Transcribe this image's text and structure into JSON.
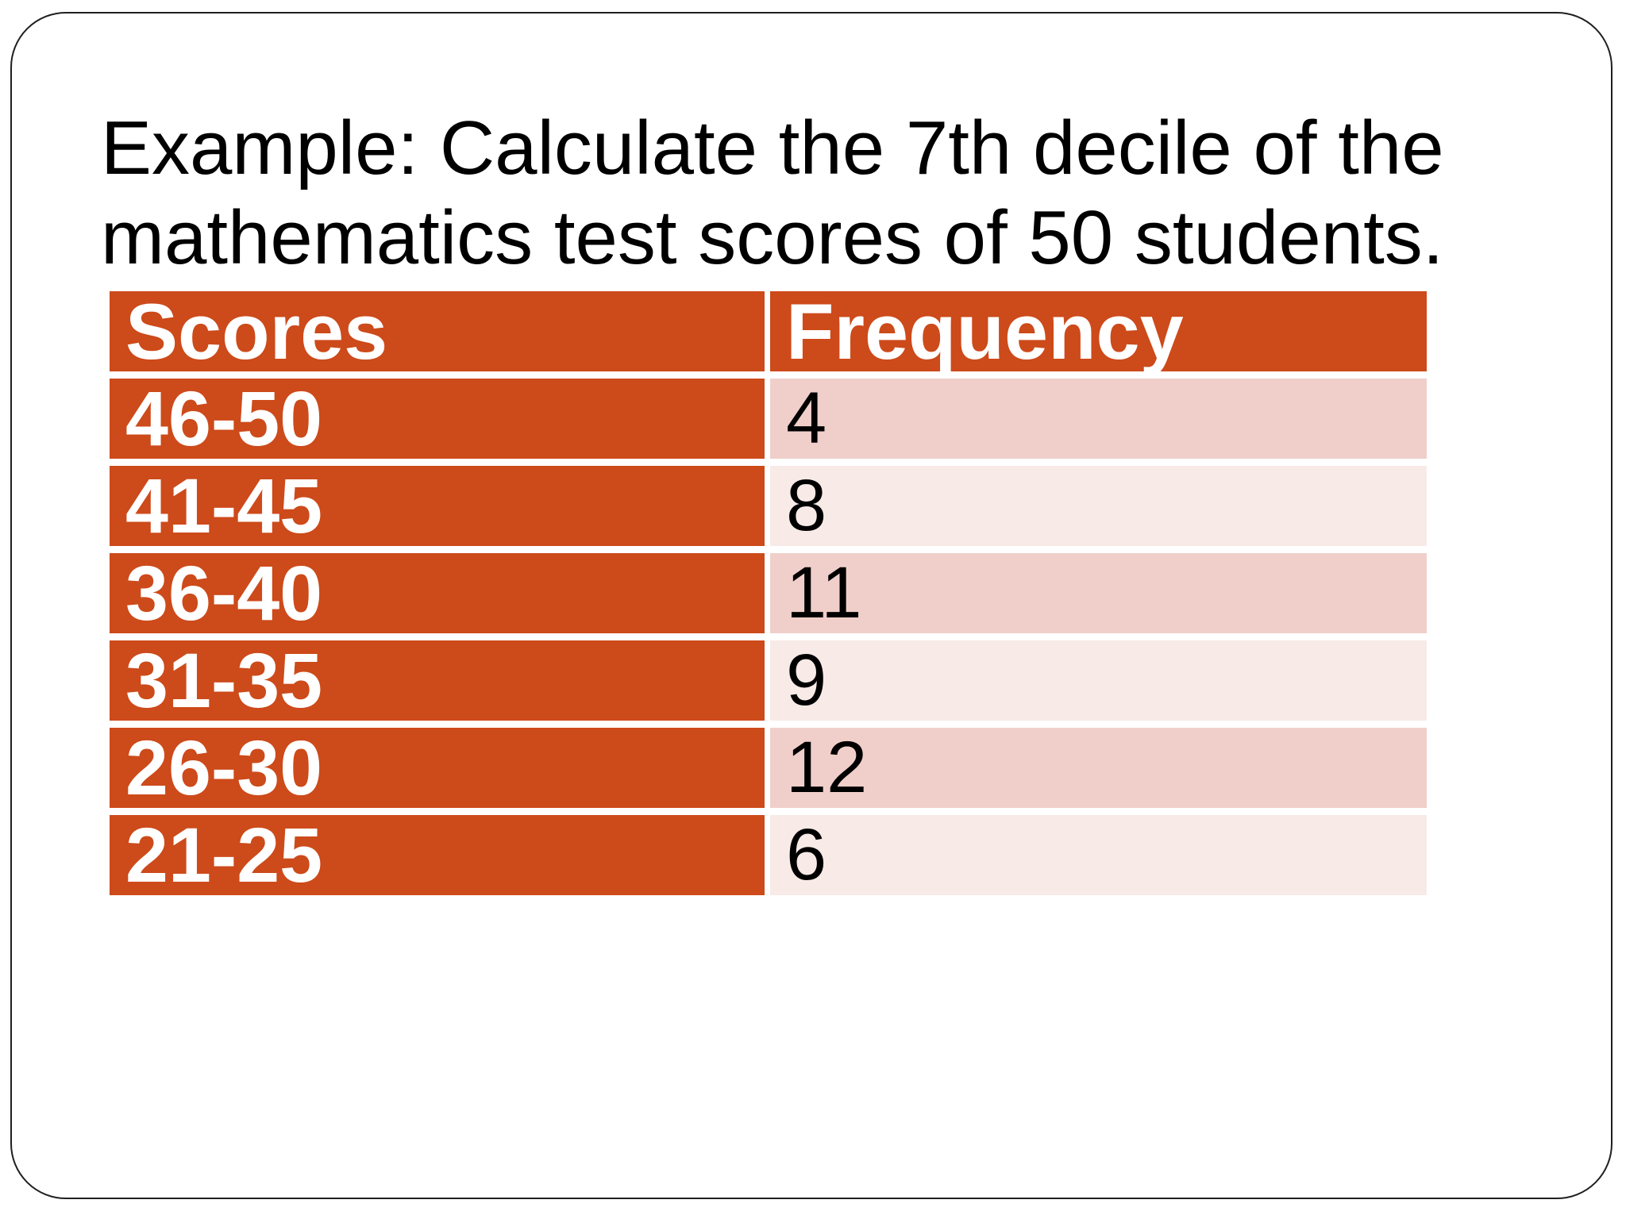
{
  "slide": {
    "title_lines": [
      "Example: Calculate the 7th decile of the",
      "mathematics test scores of 50 students."
    ]
  },
  "table": {
    "headers": [
      "Scores",
      "Frequency"
    ],
    "rows": [
      {
        "scores": "46-50",
        "frequency": "4"
      },
      {
        "scores": "41-45",
        "frequency": "8"
      },
      {
        "scores": "36-40",
        "frequency": "11"
      },
      {
        "scores": "31-35",
        "frequency": "9"
      },
      {
        "scores": "26-30",
        "frequency": "12"
      },
      {
        "scores": "21-25",
        "frequency": "6"
      }
    ]
  },
  "colors": {
    "accent_orange": "#CD4A1A",
    "row_band_dark": "#F0CFCA",
    "row_band_light": "#F8EAE7",
    "header_text": "#FFFFFF",
    "body_text": "#000000",
    "border_line": "#1F1F1F"
  },
  "chart_data": {
    "type": "table",
    "title": "Example: Calculate the 7th decile of the mathematics test scores of 50 students.",
    "columns": [
      "Scores",
      "Frequency"
    ],
    "rows": [
      [
        "46-50",
        4
      ],
      [
        "41-45",
        8
      ],
      [
        "36-40",
        11
      ],
      [
        "31-35",
        9
      ],
      [
        "26-30",
        12
      ],
      [
        "21-25",
        6
      ]
    ],
    "total_frequency": 50
  }
}
